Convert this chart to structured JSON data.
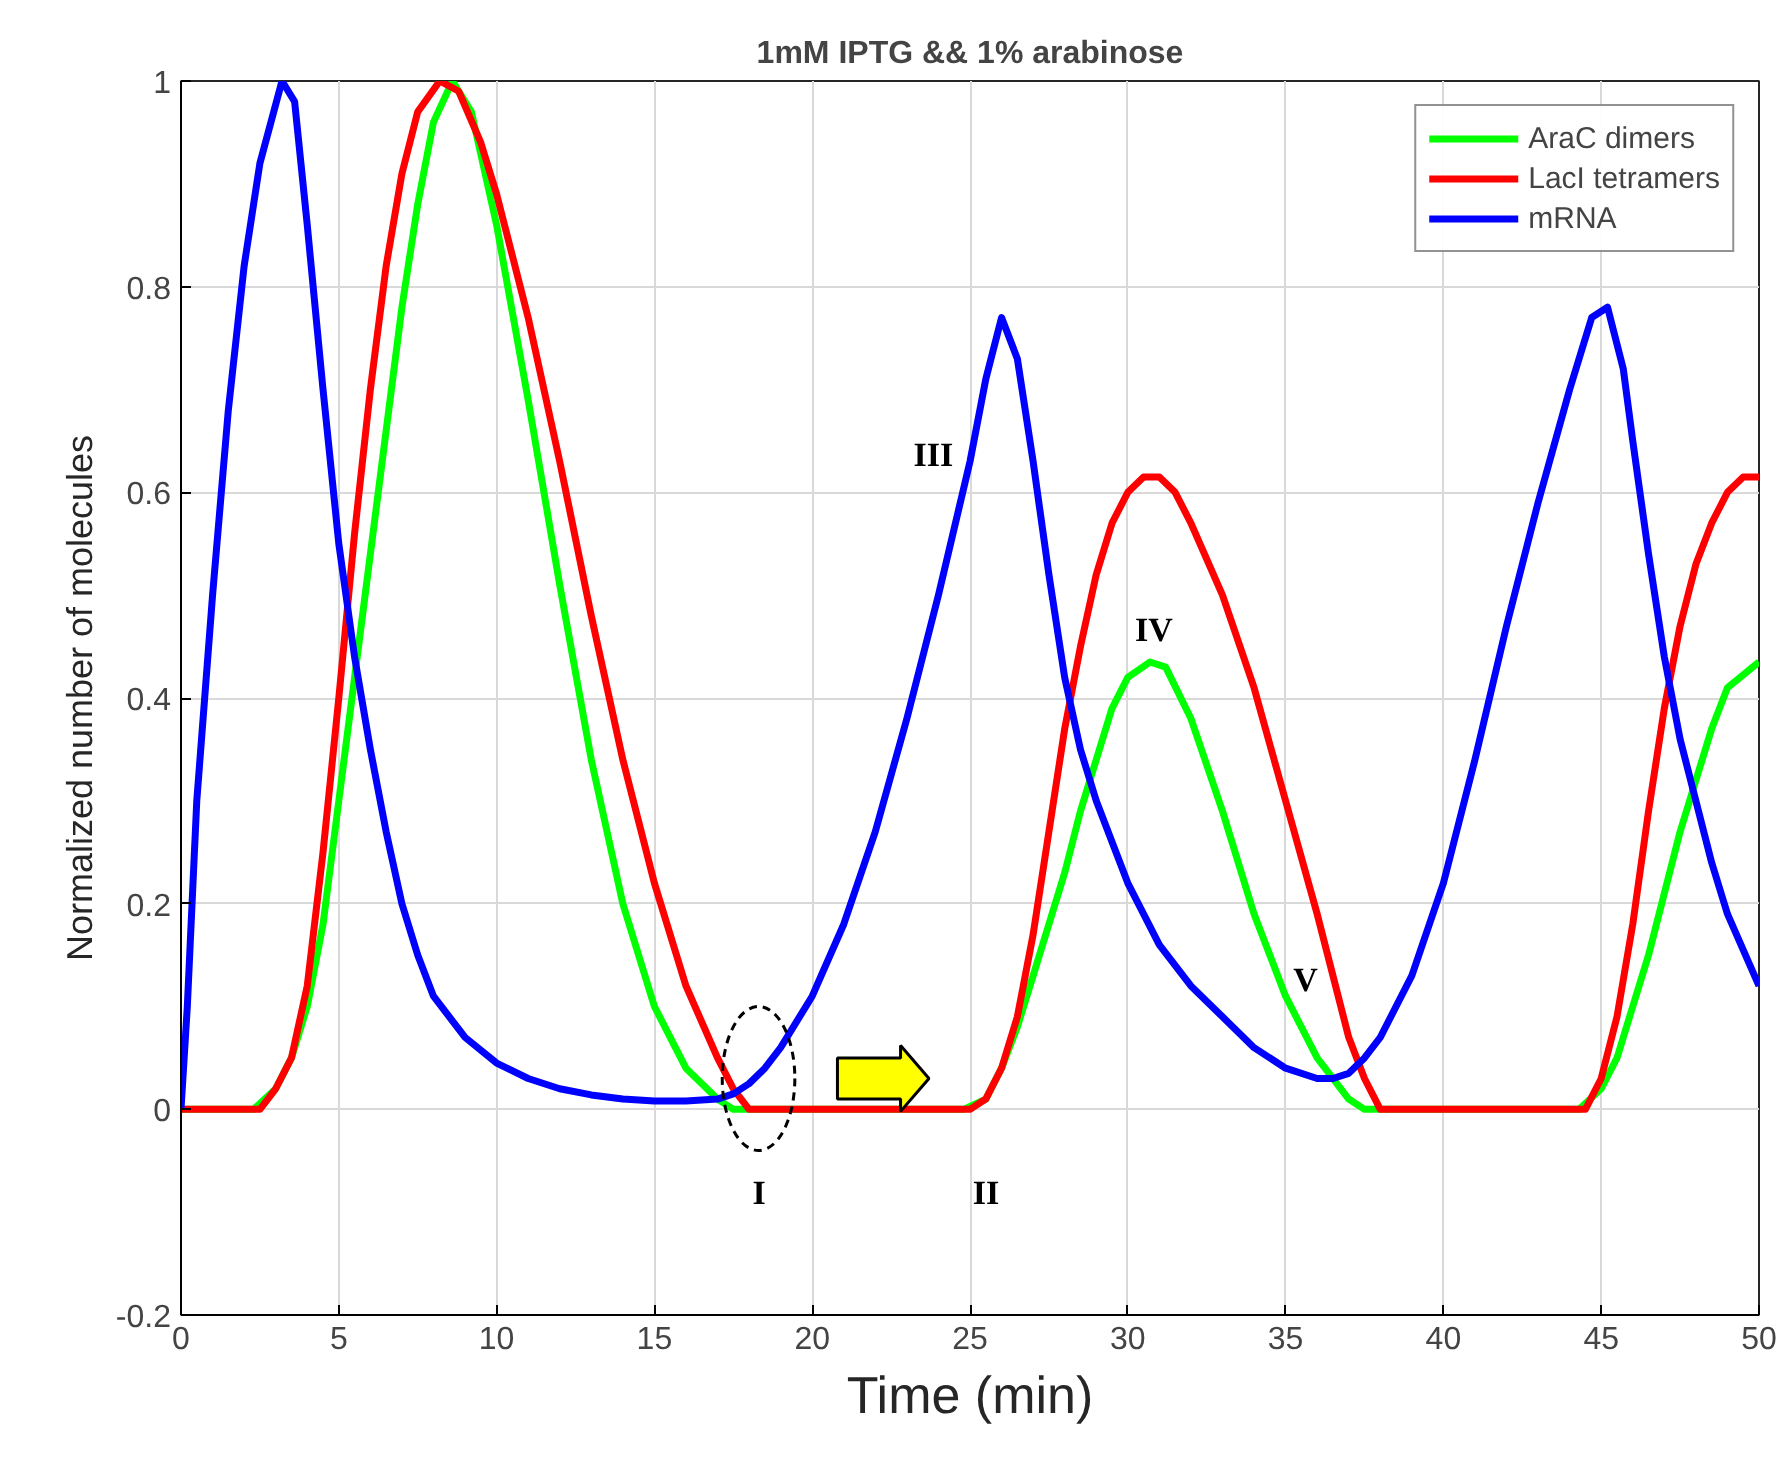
{
  "chart_data": {
    "type": "line",
    "title": "1mM IPTG && 1% arabinose",
    "xlabel": "Time (min)",
    "ylabel": "Normalized number of molecules",
    "xlim": [
      0,
      50
    ],
    "ylim": [
      -0.2,
      1
    ],
    "xticks": [
      0,
      5,
      10,
      15,
      20,
      25,
      30,
      35,
      40,
      45,
      50
    ],
    "yticks": [
      -0.2,
      0,
      0.2,
      0.4,
      0.6,
      0.8,
      1
    ],
    "grid": true,
    "legend": "top right",
    "marker": "none",
    "line_style": "solid",
    "annotations": [
      {
        "text": "I",
        "x": 18,
        "y": 0
      },
      {
        "text": "II",
        "x": 25,
        "y": 0
      },
      {
        "text": "III",
        "x": 26.5,
        "y": 0.73
      },
      {
        "text": "IV",
        "x": 30.7,
        "y": 0.435
      },
      {
        "text": "V",
        "x": 35,
        "y": 0.11
      }
    ],
    "series": [
      {
        "name": "AraC dimers",
        "color": "#00ff00",
        "x": [
          0,
          2.3,
          3,
          3.5,
          4,
          4.5,
          5,
          5.5,
          6,
          6.5,
          7,
          7.5,
          8,
          8.6,
          9.2,
          10,
          11,
          12,
          13,
          14,
          15,
          16,
          17,
          17.5,
          24.8,
          25.5,
          26,
          26.5,
          27,
          27.5,
          28,
          28.5,
          29,
          29.5,
          30,
          30.7,
          31.2,
          32,
          33,
          34,
          35,
          36,
          37,
          37.5,
          44.3,
          45,
          45.5,
          46,
          46.5,
          47,
          47.5,
          48,
          48.5,
          49,
          50
        ],
        "values": [
          0,
          0,
          0.02,
          0.05,
          0.1,
          0.18,
          0.3,
          0.42,
          0.54,
          0.66,
          0.78,
          0.88,
          0.96,
          1.0,
          0.97,
          0.86,
          0.69,
          0.51,
          0.34,
          0.2,
          0.1,
          0.04,
          0.01,
          0,
          0,
          0.01,
          0.04,
          0.08,
          0.13,
          0.18,
          0.23,
          0.29,
          0.34,
          0.39,
          0.42,
          0.435,
          0.43,
          0.38,
          0.29,
          0.19,
          0.11,
          0.05,
          0.01,
          0,
          0,
          0.02,
          0.05,
          0.1,
          0.15,
          0.21,
          0.27,
          0.32,
          0.37,
          0.41,
          0.435
        ]
      },
      {
        "name": "LacI tetramers",
        "color": "#ff0000",
        "x": [
          0,
          2.5,
          3,
          3.5,
          4,
          4.5,
          5,
          5.5,
          6,
          6.5,
          7,
          7.5,
          8.2,
          8.8,
          9.5,
          10,
          11,
          12,
          13,
          14,
          15,
          16,
          17,
          17.5,
          18,
          25,
          25.5,
          26,
          26.5,
          27,
          27.5,
          28,
          28.5,
          29,
          29.5,
          30,
          30.5,
          31,
          31.5,
          32,
          33,
          34,
          35,
          36,
          37,
          37.5,
          38,
          44.5,
          45,
          45.5,
          46,
          46.5,
          47,
          47.5,
          48,
          48.5,
          49,
          49.5,
          50
        ],
        "values": [
          0,
          0,
          0.02,
          0.05,
          0.12,
          0.25,
          0.4,
          0.56,
          0.7,
          0.82,
          0.91,
          0.97,
          1.0,
          0.99,
          0.94,
          0.89,
          0.77,
          0.63,
          0.48,
          0.34,
          0.22,
          0.12,
          0.05,
          0.02,
          0,
          0,
          0.01,
          0.04,
          0.09,
          0.17,
          0.27,
          0.37,
          0.45,
          0.52,
          0.57,
          0.6,
          0.615,
          0.615,
          0.6,
          0.57,
          0.5,
          0.41,
          0.3,
          0.19,
          0.07,
          0.03,
          0,
          0,
          0.03,
          0.09,
          0.18,
          0.29,
          0.39,
          0.47,
          0.53,
          0.57,
          0.6,
          0.615,
          0.615
        ]
      },
      {
        "name": "mRNA",
        "color": "#0000ff",
        "x": [
          0,
          0.2,
          0.5,
          1,
          1.5,
          2,
          2.5,
          3.2,
          3.6,
          4,
          4.5,
          5,
          5.5,
          6,
          6.5,
          7,
          7.5,
          8,
          9,
          10,
          11,
          12,
          13,
          14,
          15,
          16,
          17,
          17.5,
          18,
          18.5,
          19,
          20,
          21,
          22,
          23,
          24,
          25,
          25.5,
          26,
          26.5,
          27,
          27.5,
          28,
          28.5,
          29,
          30,
          31,
          32,
          33,
          34,
          35,
          36,
          36.5,
          37,
          37.5,
          38,
          39,
          40,
          41,
          42,
          43,
          44,
          44.7,
          45.2,
          45.7,
          46,
          46.5,
          47,
          47.5,
          48,
          48.5,
          49,
          50
        ],
        "values": [
          0,
          0.1,
          0.3,
          0.5,
          0.68,
          0.82,
          0.92,
          1.0,
          0.98,
          0.86,
          0.7,
          0.55,
          0.44,
          0.35,
          0.27,
          0.2,
          0.15,
          0.11,
          0.07,
          0.045,
          0.03,
          0.02,
          0.014,
          0.01,
          0.008,
          0.008,
          0.01,
          0.015,
          0.025,
          0.04,
          0.06,
          0.11,
          0.18,
          0.27,
          0.38,
          0.5,
          0.63,
          0.71,
          0.77,
          0.73,
          0.63,
          0.52,
          0.42,
          0.35,
          0.3,
          0.22,
          0.16,
          0.12,
          0.09,
          0.06,
          0.04,
          0.03,
          0.03,
          0.035,
          0.05,
          0.07,
          0.13,
          0.22,
          0.34,
          0.47,
          0.59,
          0.7,
          0.77,
          0.78,
          0.72,
          0.65,
          0.54,
          0.44,
          0.36,
          0.3,
          0.24,
          0.19,
          0.12
        ]
      }
    ]
  }
}
